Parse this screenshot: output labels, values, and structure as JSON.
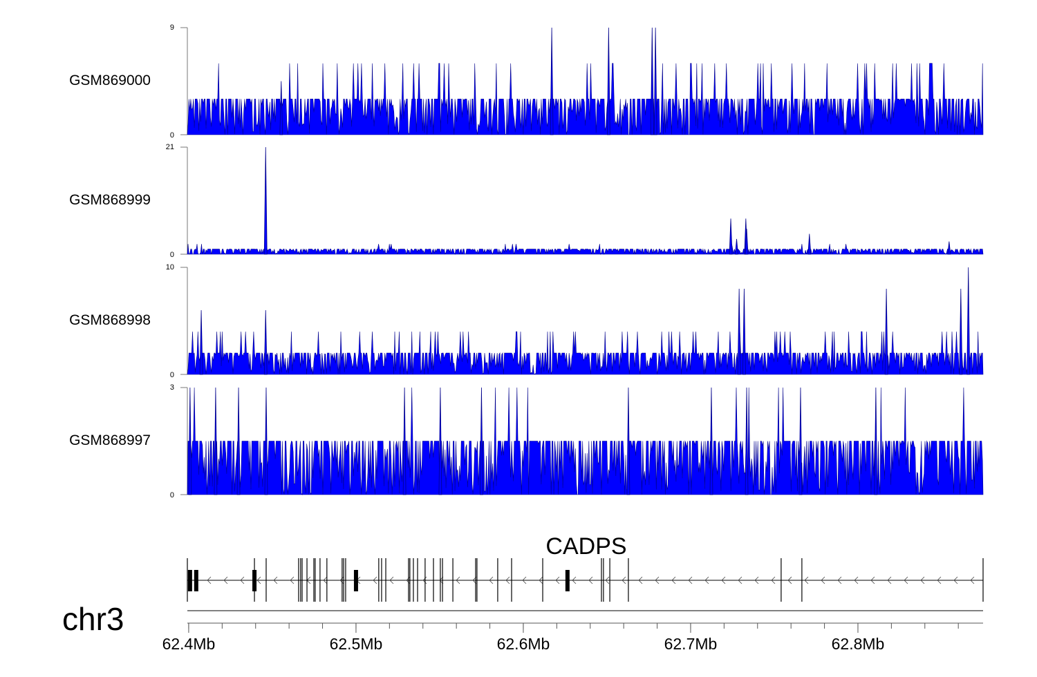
{
  "chart_data": {
    "type": "area",
    "title": "",
    "chromosome": "chr3",
    "xlabel": "",
    "xlim_mb": [
      62.3992,
      62.8748
    ],
    "x_ticks": [
      {
        "value": 62.4,
        "label": "62.4Mb"
      },
      {
        "value": 62.5,
        "label": "62.5Mb"
      },
      {
        "value": 62.6,
        "label": "62.6Mb"
      },
      {
        "value": 62.7,
        "label": "62.7Mb"
      },
      {
        "value": 62.8,
        "label": "62.8Mb"
      }
    ],
    "minor_tick_step_mb": 0.02,
    "color": "#0000ff",
    "edge_color": "#00008b",
    "series": [
      {
        "name": "GSM869000",
        "ylim": [
          0,
          9
        ],
        "y_ticks": [
          "0",
          "9"
        ],
        "base_level": 3,
        "spike_level": 6,
        "spike_rate": 0.06,
        "peaks": [
          [
            62.617,
            9
          ],
          [
            62.651,
            9
          ],
          [
            62.677,
            9
          ],
          [
            62.679,
            9
          ],
          [
            62.4553,
            4.5
          ]
        ]
      },
      {
        "name": "GSM868999",
        "ylim": [
          0,
          21
        ],
        "y_ticks": [
          "0",
          "21"
        ],
        "base_level": 1,
        "spike_level": 2,
        "spike_rate": 0.02,
        "peaks": [
          [
            62.446,
            21
          ],
          [
            62.724,
            7
          ],
          [
            62.733,
            7
          ],
          [
            62.7335,
            5
          ],
          [
            62.771,
            4
          ],
          [
            62.7275,
            3
          ],
          [
            62.8545,
            2.5
          ]
        ]
      },
      {
        "name": "GSM868998",
        "ylim": [
          0,
          10
        ],
        "y_ticks": [
          "0",
          "10"
        ],
        "base_level": 2,
        "spike_level": 4,
        "spike_rate": 0.08,
        "peaks": [
          [
            62.866,
            10
          ],
          [
            62.729,
            8
          ],
          [
            62.732,
            8
          ],
          [
            62.817,
            8
          ],
          [
            62.8615,
            8
          ],
          [
            62.4075,
            6
          ],
          [
            62.446,
            6
          ]
        ]
      },
      {
        "name": "GSM868997",
        "ylim": [
          0,
          3
        ],
        "y_ticks": [
          "0",
          "3"
        ],
        "base_level": 1.5,
        "spike_level": 3,
        "spike_rate": 0.012,
        "peaks": [
          [
            62.529,
            3
          ],
          [
            62.575,
            3
          ],
          [
            62.4008,
            3
          ],
          [
            62.4161,
            3
          ],
          [
            62.4298,
            3
          ],
          [
            62.4463,
            3
          ],
          [
            62.5504,
            3
          ],
          [
            62.6628,
            3
          ],
          [
            62.7124,
            3
          ],
          [
            62.7335,
            3
          ],
          [
            62.7657,
            3
          ],
          [
            62.8107,
            3
          ]
        ]
      }
    ],
    "gene": {
      "name": "CADPS",
      "strand": "-",
      "exons": [
        62.3992,
        62.4393,
        62.4463,
        62.4657,
        62.4669,
        62.4678,
        62.4707,
        62.4748,
        62.4756,
        62.4785,
        62.4826,
        62.4917,
        62.4926,
        62.4938,
        62.5136,
        62.5153,
        62.5178,
        62.5314,
        62.5322,
        62.5343,
        62.5368,
        62.5413,
        62.5463,
        62.5504,
        62.5517,
        62.5579,
        62.5715,
        62.5723,
        62.5847,
        62.593,
        62.6116,
        62.6467,
        62.6479,
        62.6517,
        62.6628,
        62.7541,
        62.7665,
        62.8748
      ],
      "coding_exons": [
        62.4008,
        62.4045,
        62.4393,
        62.5,
        62.6264
      ]
    }
  }
}
